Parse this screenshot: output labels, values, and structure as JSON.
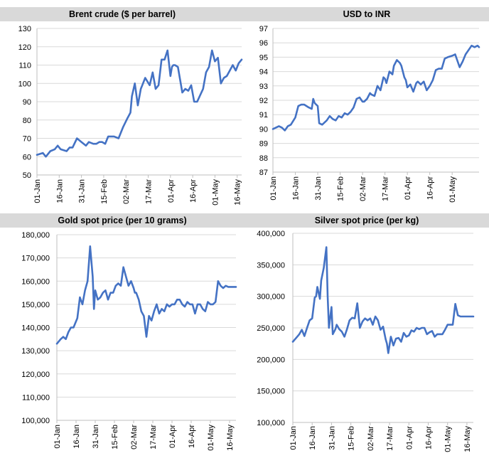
{
  "chart_data": [
    {
      "id": "brent",
      "type": "line",
      "title": "Brent crude ($ per barrel)",
      "series_color": "#4472c4",
      "ylim": [
        50,
        130
      ],
      "yticks": [
        "50",
        "60",
        "70",
        "80",
        "90",
        "100",
        "110",
        "120",
        "130"
      ],
      "yticks_values": [
        50,
        60,
        70,
        80,
        90,
        100,
        110,
        120,
        130
      ],
      "xlim": [
        0,
        138
      ],
      "xticks": [
        "01-Jan",
        "16-Jan",
        "31-Jan",
        "15-Feb",
        "02-Mar",
        "17-Mar",
        "01-Apr",
        "16-Apr",
        "01-May",
        "16-May"
      ],
      "xticks_values": [
        0,
        15,
        30,
        45,
        60,
        75,
        90,
        105,
        120,
        135
      ],
      "grid": true,
      "x": [
        0,
        4,
        6,
        9,
        12,
        14,
        16,
        20,
        22,
        24,
        27,
        30,
        33,
        35,
        38,
        40,
        42,
        44,
        46,
        48,
        52,
        55,
        58,
        61,
        63,
        64,
        66,
        68,
        70,
        71,
        73,
        76,
        78,
        80,
        82,
        84,
        86,
        88,
        90,
        91,
        92,
        93,
        95,
        98,
        100,
        102,
        104,
        106,
        108,
        112,
        114,
        116,
        118,
        120,
        122,
        124,
        126,
        128,
        130,
        132,
        134,
        136,
        138
      ],
      "y": [
        61,
        62,
        60,
        63,
        64,
        66,
        64,
        63,
        65,
        65,
        70,
        68,
        66,
        68,
        67,
        67,
        68,
        68,
        67,
        71,
        71,
        70,
        76,
        81,
        84,
        93,
        100,
        88,
        97,
        99,
        103,
        99,
        106,
        97,
        99,
        113,
        113,
        118,
        104,
        109,
        110,
        110,
        109,
        95,
        97,
        96,
        99,
        90,
        90,
        97,
        106,
        109,
        118,
        112,
        114,
        100,
        103,
        104,
        107,
        110,
        107,
        111,
        113
      ],
      "series_name": ""
    },
    {
      "id": "usdinr",
      "type": "line",
      "title": "USD to INR",
      "series_color": "#4472c4",
      "ylim": [
        87,
        97
      ],
      "yticks": [
        "87",
        "88",
        "89",
        "90",
        "91",
        "92",
        "93",
        "94",
        "95",
        "96",
        "97"
      ],
      "yticks_values": [
        87,
        88,
        89,
        90,
        91,
        92,
        93,
        94,
        95,
        96,
        97
      ],
      "xlim": [
        0,
        138
      ],
      "xticks": [
        "01-Jan",
        "16-Jan",
        "31-Jan",
        "15-Feb",
        "02-Mar",
        "17-Mar",
        "01-Apr",
        "16-Apr",
        "01-May"
      ],
      "xticks_values": [
        0,
        15,
        30,
        45,
        60,
        75,
        90,
        105,
        120
      ],
      "grid": true,
      "x": [
        0,
        4,
        6,
        8,
        10,
        12,
        15,
        17,
        19,
        21,
        24,
        26,
        27,
        28,
        30,
        31,
        33,
        36,
        38,
        40,
        42,
        44,
        46,
        48,
        50,
        52,
        54,
        56,
        58,
        60,
        61,
        63,
        65,
        66,
        68,
        70,
        72,
        74,
        75,
        76,
        78,
        80,
        81,
        83,
        85,
        86,
        88,
        89,
        90,
        92,
        94,
        96,
        97,
        99,
        101,
        103,
        105,
        107,
        109,
        111,
        113,
        115,
        117,
        120,
        122,
        125,
        127,
        129,
        131,
        133,
        135,
        137,
        138
      ],
      "y": [
        90,
        90.2,
        90.1,
        89.9,
        90.2,
        90.3,
        90.8,
        91.6,
        91.7,
        91.7,
        91.5,
        91.4,
        92.1,
        91.8,
        91.6,
        90.4,
        90.3,
        90.6,
        90.9,
        90.7,
        90.6,
        90.9,
        90.8,
        91.1,
        91.0,
        91.2,
        91.5,
        92.1,
        92.2,
        91.9,
        91.9,
        92.1,
        92.5,
        92.4,
        92.3,
        93.0,
        92.7,
        93.6,
        93.5,
        93.2,
        94.0,
        93.8,
        94.4,
        94.8,
        94.6,
        94.4,
        93.6,
        93.4,
        92.9,
        93.1,
        92.6,
        93.2,
        93.3,
        93.1,
        93.3,
        92.7,
        93.0,
        93.4,
        94.1,
        94.2,
        94.2,
        94.9,
        95.0,
        95.1,
        95.2,
        94.3,
        94.7,
        95.2,
        95.5,
        95.8,
        95.7,
        95.8,
        95.7
      ],
      "series_name": ""
    },
    {
      "id": "gold",
      "type": "line",
      "title": "Gold spot price (per 10 grams)",
      "series_color": "#4472c4",
      "ylim": [
        100000,
        180000
      ],
      "yticks": [
        "100,000",
        "110,000",
        "120,000",
        "130,000",
        "140,000",
        "150,000",
        "160,000",
        "170,000",
        "180,000"
      ],
      "yticks_values": [
        100000,
        110000,
        120000,
        130000,
        140000,
        150000,
        160000,
        170000,
        180000
      ],
      "xlim": [
        0,
        140
      ],
      "xticks": [
        "01-Jan",
        "16-Jan",
        "31-Jan",
        "15-Feb",
        "02-Mar",
        "17-Mar",
        "01-Apr",
        "16-Apr",
        "01-May",
        "16-May"
      ],
      "xticks_values": [
        0,
        15,
        30,
        45,
        60,
        75,
        90,
        105,
        120,
        135
      ],
      "grid": true,
      "x": [
        0,
        3,
        5,
        7,
        9,
        11,
        13,
        16,
        18,
        20,
        22,
        24,
        26,
        28,
        29,
        30,
        32,
        34,
        36,
        38,
        40,
        42,
        44,
        46,
        48,
        50,
        52,
        54,
        56,
        58,
        60,
        61,
        62,
        64,
        66,
        68,
        70,
        72,
        74,
        76,
        78,
        80,
        82,
        84,
        86,
        88,
        90,
        92,
        94,
        96,
        98,
        100,
        102,
        104,
        106,
        108,
        110,
        112,
        114,
        116,
        118,
        120,
        122,
        124,
        126,
        128,
        130,
        132,
        134,
        136,
        138,
        140
      ],
      "y": [
        133000,
        135000,
        136000,
        135000,
        138000,
        140000,
        140000,
        144000,
        153000,
        150000,
        156000,
        160000,
        175000,
        162000,
        148000,
        156000,
        152000,
        153000,
        155000,
        156000,
        152000,
        155000,
        155000,
        158000,
        159000,
        158000,
        166000,
        162000,
        158000,
        160000,
        157000,
        155000,
        155000,
        152000,
        147000,
        145000,
        136000,
        145000,
        143000,
        147000,
        150000,
        146000,
        148000,
        147000,
        150000,
        149000,
        150000,
        150000,
        152000,
        152000,
        150000,
        149000,
        151000,
        150000,
        150000,
        146000,
        150000,
        150000,
        148000,
        147000,
        151000,
        150000,
        150000,
        151000,
        160000,
        158000,
        157000,
        158000,
        157500,
        157500,
        157500,
        157500
      ],
      "series_name": ""
    },
    {
      "id": "silver",
      "type": "line",
      "title": "Silver spot price (per kg)",
      "series_color": "#4472c4",
      "ylim": [
        100000,
        400000
      ],
      "yticks": [
        "100,000",
        "150,000",
        "200,000",
        "250,000",
        "300,000",
        "350,000",
        "400,000"
      ],
      "yticks_values": [
        100000,
        150000,
        200000,
        250000,
        300000,
        350000,
        400000
      ],
      "xlim": [
        0,
        140
      ],
      "xticks": [
        "01-Jan",
        "16-Jan",
        "31-Jan",
        "15-Feb",
        "02-Mar",
        "17-Mar",
        "01-Apr",
        "16-Apr",
        "01-May",
        "16-May"
      ],
      "xticks_values": [
        0,
        15,
        30,
        45,
        60,
        75,
        90,
        105,
        120,
        135
      ],
      "grid": true,
      "x": [
        0,
        3,
        5,
        7,
        9,
        11,
        13,
        15,
        17,
        18,
        19,
        21,
        22,
        23,
        24,
        26,
        27,
        28,
        30,
        31,
        33,
        34,
        36,
        38,
        40,
        42,
        44,
        46,
        48,
        50,
        52,
        54,
        56,
        58,
        60,
        62,
        64,
        66,
        68,
        70,
        72,
        73,
        74,
        76,
        78,
        80,
        82,
        84,
        86,
        88,
        90,
        92,
        94,
        96,
        98,
        100,
        102,
        104,
        106,
        108,
        110,
        112,
        114,
        116,
        118,
        120,
        122,
        124,
        126,
        128,
        130,
        132,
        134,
        136,
        138,
        140
      ],
      "y": [
        228000,
        235000,
        240000,
        247000,
        237000,
        250000,
        262000,
        265000,
        298000,
        300000,
        315000,
        296000,
        325000,
        335000,
        345000,
        378000,
        300000,
        250000,
        283000,
        240000,
        248000,
        255000,
        248000,
        244000,
        236000,
        248000,
        262000,
        266000,
        265000,
        289000,
        250000,
        260000,
        265000,
        262000,
        265000,
        255000,
        268000,
        262000,
        247000,
        252000,
        232000,
        225000,
        210000,
        236000,
        222000,
        233000,
        234000,
        228000,
        242000,
        236000,
        238000,
        246000,
        244000,
        250000,
        248000,
        250000,
        250000,
        240000,
        243000,
        245000,
        236000,
        240000,
        240000,
        240000,
        247000,
        255000,
        255000,
        255000,
        288000,
        270000,
        268000,
        268000,
        268000,
        268000,
        268000,
        268000
      ],
      "series_name": ""
    }
  ]
}
